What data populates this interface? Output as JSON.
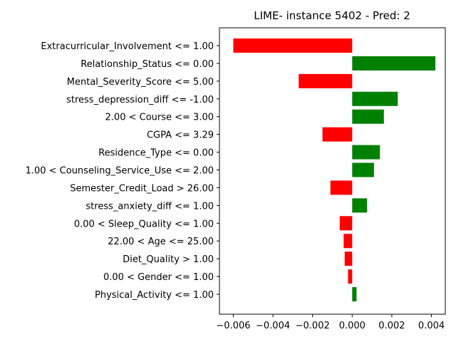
{
  "chart_data": {
    "type": "bar",
    "orientation": "horizontal",
    "title": "LIME- instance 5402 - Pred: 2",
    "xlabel": "",
    "ylabel": "",
    "xlim": [
      -0.0067,
      0.0047
    ],
    "xticks": [
      -0.006,
      -0.004,
      -0.002,
      0.0,
      0.002,
      0.004
    ],
    "xtick_labels": [
      "−0.006",
      "−0.004",
      "−0.002",
      "0.000",
      "0.002",
      "0.004"
    ],
    "positive_color": "#008000",
    "negative_color": "#ff0000",
    "grid": false,
    "categories": [
      "Extracurricular_Involvement <= 1.00",
      "Relationship_Status <= 0.00",
      "Mental_Severity_Score <= 5.00",
      "stress_depression_diff <= -1.00",
      "2.00 < Course <= 3.00",
      "CGPA <= 3.29",
      "Residence_Type <= 0.00",
      "1.00 < Counseling_Service_Use <= 2.00",
      "Semester_Credit_Load > 26.00",
      "stress_anxiety_diff <= 1.00",
      "0.00 < Sleep_Quality <= 1.00",
      "22.00 < Age <= 25.00",
      "Diet_Quality > 1.00",
      "0.00 < Gender <= 1.00",
      "Physical_Activity <= 1.00"
    ],
    "values": [
      -0.006,
      0.0042,
      -0.0027,
      0.0023,
      0.0016,
      -0.0015,
      0.0014,
      0.0011,
      -0.0011,
      0.00075,
      -0.00063,
      -0.00043,
      -0.00038,
      -0.00021,
      0.00022
    ]
  }
}
